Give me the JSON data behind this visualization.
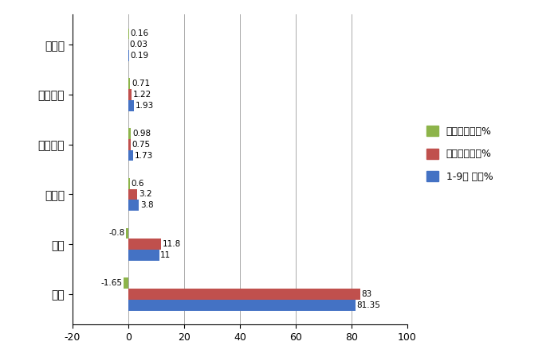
{
  "categories": [
    "柴油",
    "汽油",
    "纯电动",
    "混合动力",
    "燃料电池",
    "燃气类"
  ],
  "series": {
    "占比同比增减%": [
      -1.65,
      -0.8,
      0.6,
      0.98,
      0.71,
      0.16
    ],
    "去年同期占比%": [
      83.0,
      11.8,
      3.2,
      0.75,
      1.22,
      0.03
    ],
    "1-9月 占比%": [
      81.35,
      11.0,
      3.8,
      1.73,
      1.93,
      0.19
    ]
  },
  "colors": {
    "占比同比增减%": "#8db44a",
    "去年同期占比%": "#c0504d",
    "1-9月 占比%": "#4472c4"
  },
  "bar_height": 0.22,
  "xlim": [
    -20,
    100
  ],
  "xticks": [
    -20,
    0,
    20,
    40,
    60,
    80,
    100
  ],
  "background_color": "#ffffff",
  "legend_labels": [
    "占比同比增减%",
    "去年同期占比%",
    "1-9月 占比%"
  ],
  "value_labels": {
    "占比同比增减%": [
      "-1.65",
      "-0.8",
      "0.6",
      "0.98",
      "0.71",
      "0.16"
    ],
    "去年同期占比%": [
      "83",
      "11.8",
      "3.2",
      "0.75",
      "1.22",
      "0.03"
    ],
    "1-9月 占比%": [
      "81.35",
      "11",
      "3.8",
      "1.73",
      "1.93",
      "0.19"
    ]
  }
}
